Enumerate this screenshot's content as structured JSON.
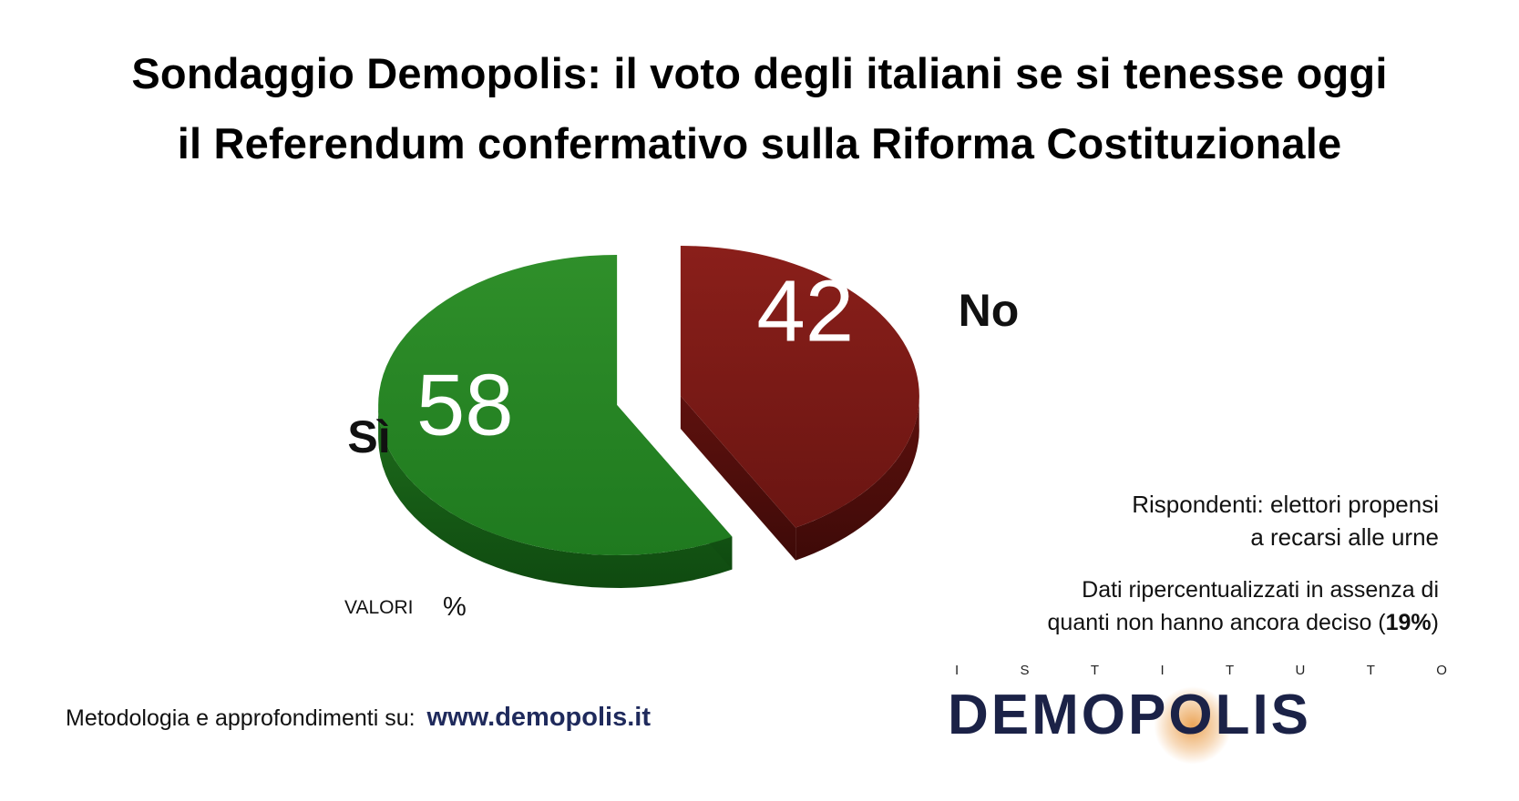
{
  "title": {
    "line1": "Sondaggio Demopolis: il voto degli italiani se si tenesse oggi",
    "line2": "il Referendum confermativo sulla Riforma Costituzionale"
  },
  "chart_data": {
    "type": "pie",
    "title": "Sondaggio Demopolis: il voto degli italiani se si tenesse oggi il Referendum confermativo sulla Riforma Costituzionale",
    "unit_label": "VALORI %",
    "slices": [
      {
        "label": "Sì",
        "value": 58,
        "value_label": "58",
        "color": "#2f8a2a"
      },
      {
        "label": "No",
        "value": 42,
        "value_label": "42",
        "color": "#7a1a16"
      }
    ]
  },
  "notes": {
    "respondents_line1": "Rispondenti: elettori propensi",
    "respondents_line2": "a recarsi alle urne",
    "reweight_line1": "Dati ripercentualizzati in assenza di",
    "reweight_line2_prefix": "quanti non hanno ancora deciso (",
    "reweight_pct": "19%",
    "reweight_line2_suffix": ")"
  },
  "footer": {
    "text": "Metodologia e approfondimenti su:",
    "url": "www.demopolis.it"
  },
  "logo": {
    "top": "ISTITUTO",
    "brand": "DEMOPOLIS"
  }
}
